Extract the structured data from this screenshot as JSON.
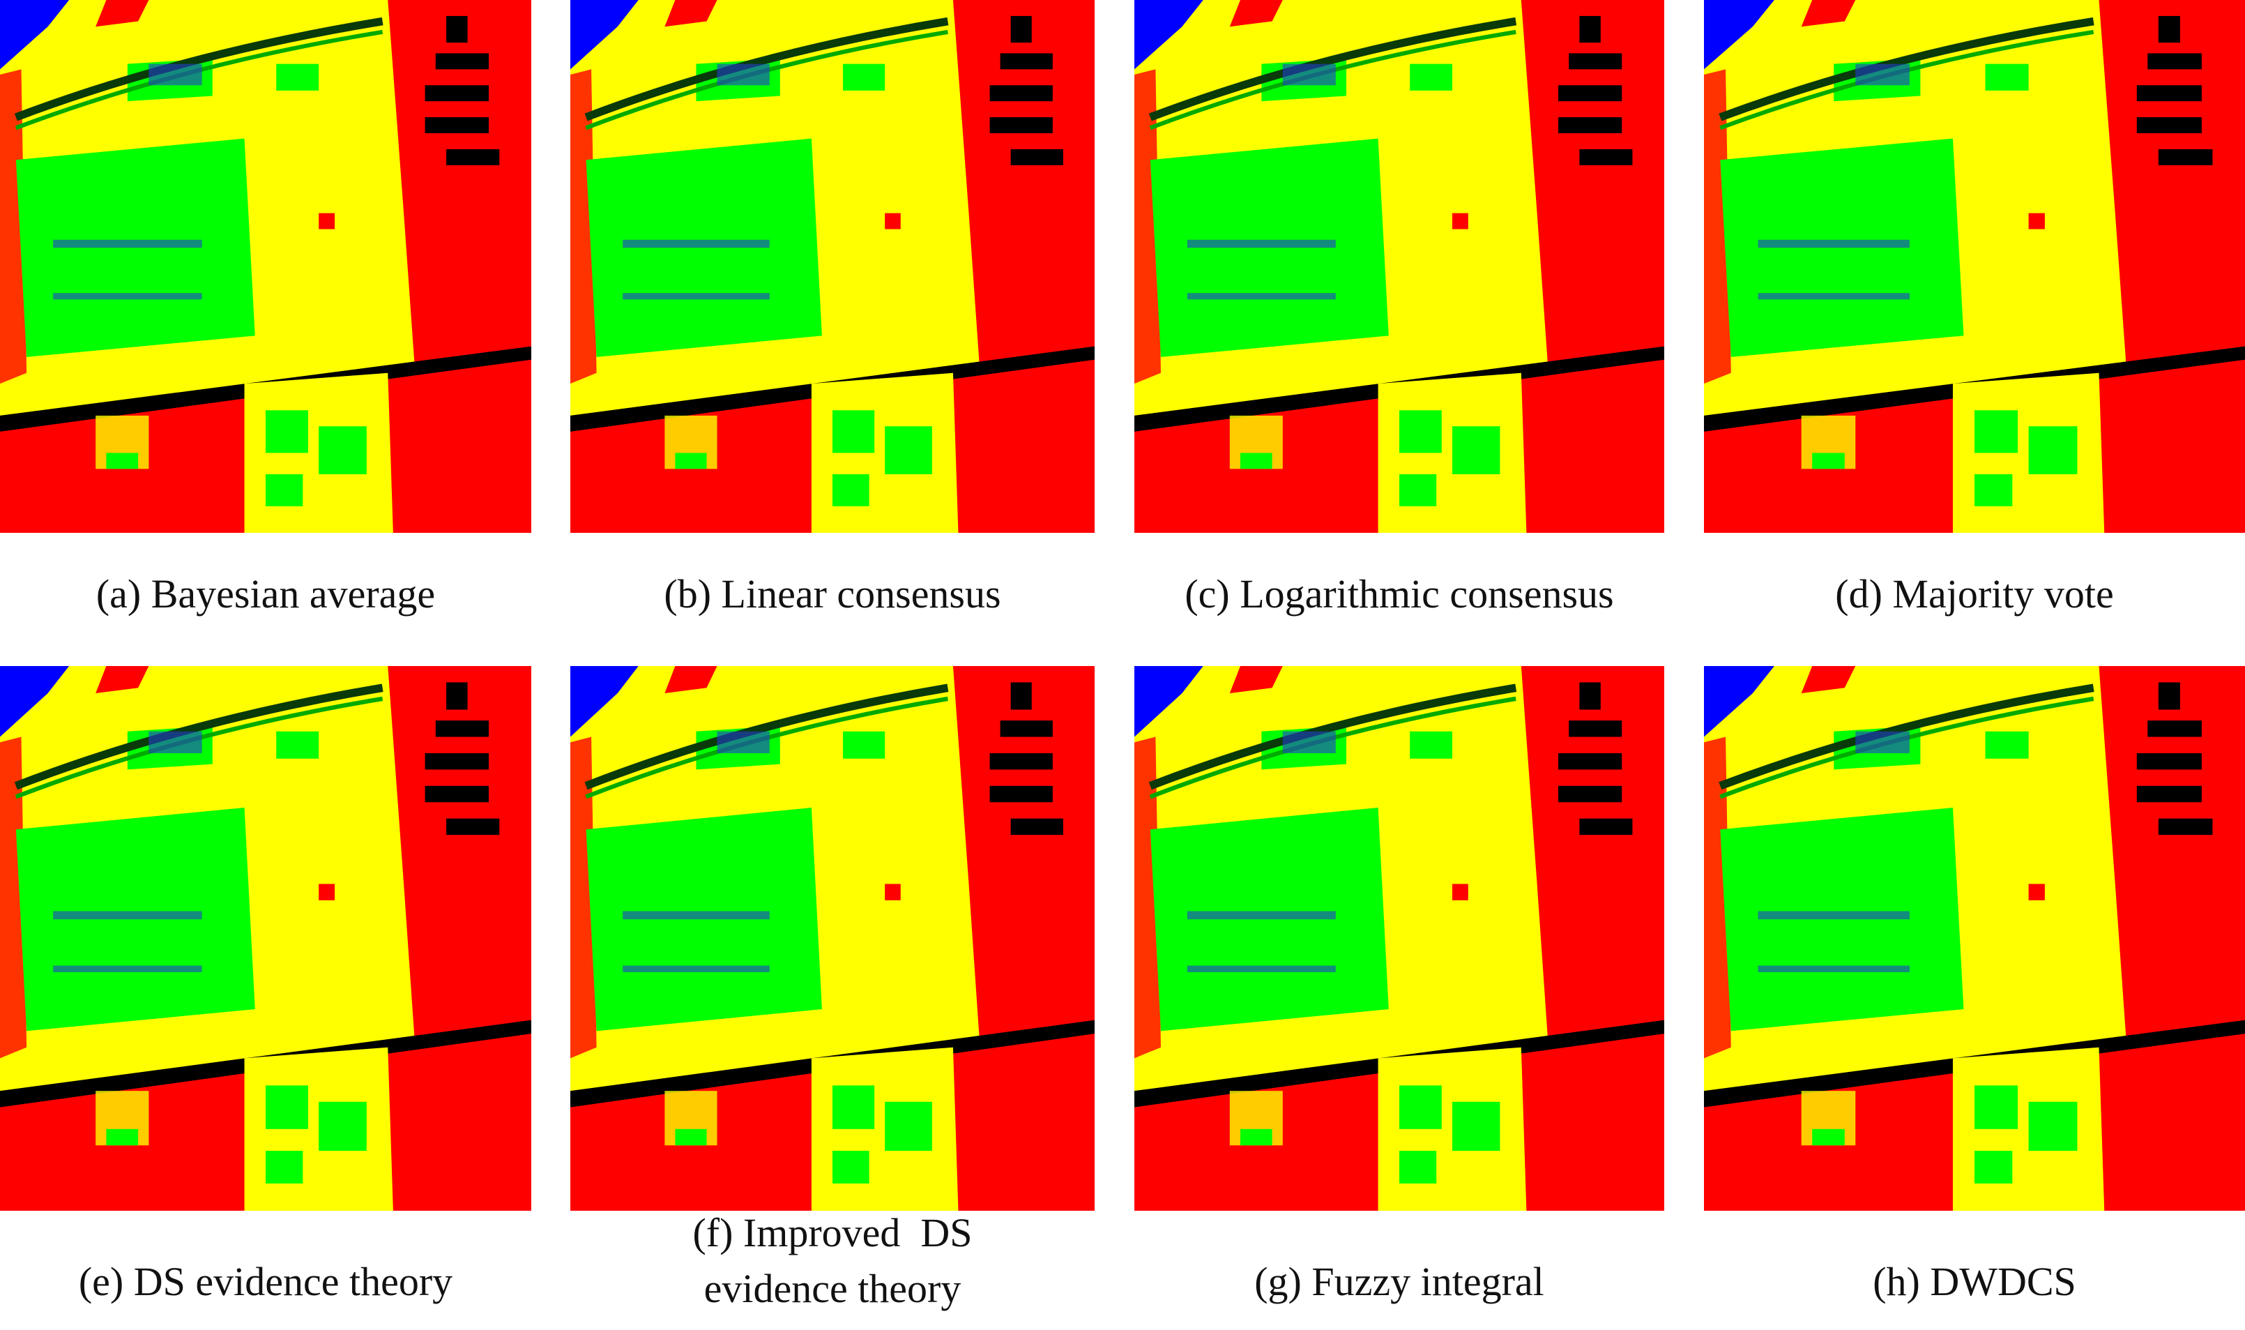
{
  "figure": {
    "panels": [
      {
        "caption_lines": [
          "(a) Bayesian average"
        ]
      },
      {
        "caption_lines": [
          "(b) Linear consensus"
        ]
      },
      {
        "caption_lines": [
          "(c) Logarithmic consensus"
        ]
      },
      {
        "caption_lines": [
          "(d) Majority vote"
        ]
      },
      {
        "caption_lines": [
          "(e) DS evidence theory"
        ]
      },
      {
        "caption_lines": [
          "(f) Improved  DS",
          "evidence theory"
        ]
      },
      {
        "caption_lines": [
          "(g) Fuzzy integral"
        ]
      },
      {
        "caption_lines": [
          "(h) DWDCS"
        ]
      }
    ]
  }
}
